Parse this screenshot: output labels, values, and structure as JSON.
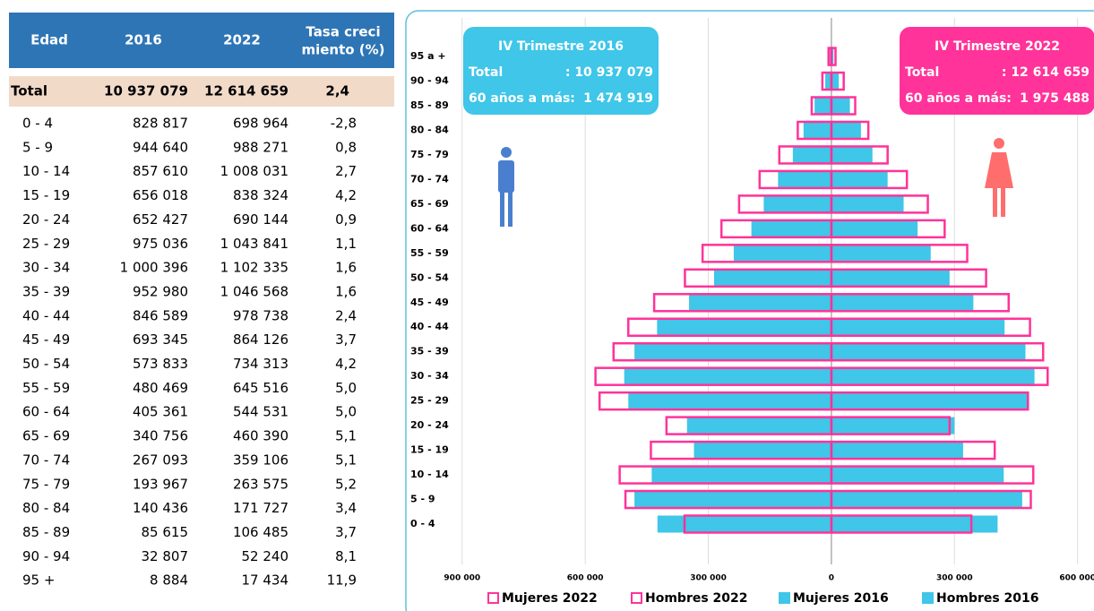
{
  "table": {
    "header": [
      "Edad",
      "2016",
      "2022",
      [
        "Tasa creci",
        "miento (%)"
      ]
    ],
    "total": [
      "Total",
      "10 937 079",
      "12 614 659",
      "2,4"
    ],
    "rows": [
      [
        "0 - 4",
        "828 817",
        "698 964",
        "-2,8"
      ],
      [
        "5 - 9",
        "944 640",
        "988 271",
        "0,8"
      ],
      [
        "10 - 14",
        "857 610",
        "1 008 031",
        "2,7"
      ],
      [
        "15 - 19",
        "656 018",
        "838 324",
        "4,2"
      ],
      [
        "20 - 24",
        "652 427",
        "690 144",
        "0,9"
      ],
      [
        "25 - 29",
        "975 036",
        "1 043 841",
        "1,1"
      ],
      [
        "30 - 34",
        "1 000 396",
        "1 102 335",
        "1,6"
      ],
      [
        "35 - 39",
        "952 980",
        "1 046 568",
        "1,6"
      ],
      [
        "40 - 44",
        "846 589",
        "978 738",
        "2,4"
      ],
      [
        "45 - 49",
        "693 345",
        "864 126",
        "3,7"
      ],
      [
        "50 - 54",
        "573 833",
        "734 313",
        "4,2"
      ],
      [
        "55 - 59",
        "480 469",
        "645 516",
        "5,0"
      ],
      [
        "60 - 64",
        "405 361",
        "544 531",
        "5,0"
      ],
      [
        "65 - 69",
        "340 756",
        "460 390",
        "5,1"
      ],
      [
        "70 - 74",
        "267 093",
        "359 106",
        "5,1"
      ],
      [
        "75 - 79",
        "193 967",
        "263 575",
        "5,2"
      ],
      [
        "80 - 84",
        "140 436",
        "171 727",
        "3,4"
      ],
      [
        "85 - 89",
        "85 615",
        "106 485",
        "3,7"
      ],
      [
        "90 - 94",
        "32 807",
        "52 240",
        "8,1"
      ],
      [
        "95 +",
        "8 884",
        "17 434",
        "11,9"
      ]
    ]
  },
  "chart_data": {
    "type": "pyramid",
    "categories": [
      "0 - 4",
      "5 - 9",
      "10 - 14",
      "15 - 19",
      "20 - 24",
      "25 - 29",
      "30 - 34",
      "35 - 39",
      "40 - 44",
      "45 - 49",
      "50 - 54",
      "55 - 59",
      "60 - 64",
      "65 - 69",
      "70 - 74",
      "75 - 79",
      "80 - 84",
      "85 - 89",
      "90 - 94",
      "95 a +"
    ],
    "series": [
      {
        "name": "Mujeres 2022",
        "color": "#ff3399",
        "style": "outline",
        "side": "right",
        "values": [
          341000,
          486000,
          492000,
          398000,
          288000,
          479000,
          527000,
          516000,
          484000,
          432000,
          377000,
          331000,
          276000,
          235000,
          184000,
          137000,
          90000,
          58000,
          30000,
          10000
        ]
      },
      {
        "name": "Hombres 2022",
        "color": "#ff3399",
        "style": "outline",
        "side": "left",
        "values": [
          358000,
          502000,
          516000,
          440000,
          402000,
          565000,
          575000,
          531000,
          495000,
          432000,
          357000,
          314000,
          268000,
          225000,
          175000,
          127000,
          82000,
          48000,
          22000,
          7000
        ]
      },
      {
        "name": "Mujeres 2016",
        "color": "#3fc6e8",
        "style": "filled",
        "side": "right",
        "values": [
          405000,
          465000,
          420000,
          321000,
          300000,
          480000,
          495000,
          473000,
          422000,
          346000,
          288000,
          242000,
          210000,
          176000,
          137000,
          100000,
          72000,
          45000,
          18000,
          5000
        ]
      },
      {
        "name": "Hombres 2016",
        "color": "#3fc6e8",
        "style": "filled",
        "side": "left",
        "values": [
          424000,
          480000,
          438000,
          335000,
          352000,
          495000,
          505000,
          480000,
          425000,
          347000,
          286000,
          238000,
          195000,
          165000,
          130000,
          94000,
          68000,
          41000,
          15000,
          4000
        ]
      }
    ],
    "xlim": [
      -1000000,
      640000
    ],
    "xticks": [
      {
        "value": -900000,
        "label": "900 000"
      },
      {
        "value": -600000,
        "label": "600 000"
      },
      {
        "value": -300000,
        "label": "300 000"
      },
      0,
      {
        "value": 300000,
        "label": "300 000"
      },
      {
        "value": 600000,
        "label": "600 000"
      }
    ],
    "grid": true,
    "annotations": [
      {
        "title": "IV Trimestre 2016",
        "total_label": "Total",
        "total_value": ": 10 937 079",
        "older_label": "60 años a más:",
        "older_value": "1 474 919"
      },
      {
        "title": "IV Trimestre 2022",
        "total_label": "Total",
        "total_value": ": 12 614 659",
        "older_label": "60 años a más:",
        "older_value": "1 975 488"
      }
    ]
  }
}
